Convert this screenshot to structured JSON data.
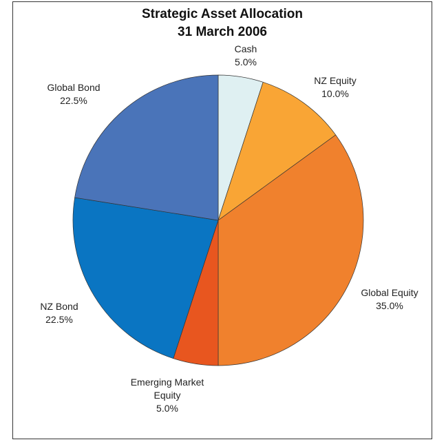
{
  "chart_data": {
    "type": "pie",
    "title": "Strategic Asset Allocation",
    "subtitle": "31 March 2006",
    "categories": [
      "Cash",
      "NZ Equity",
      "Global Equity",
      "Emerging Market Equity",
      "NZ Bond",
      "Global Bond"
    ],
    "values": [
      5,
      10,
      35,
      5,
      22.5,
      22.5
    ],
    "value_labels": [
      "5.0%",
      "10.0%",
      "35.0%",
      "5.0%",
      "22.5%",
      "22.5%"
    ],
    "colors": [
      "#dff0f2",
      "#f9a535",
      "#f0812d",
      "#e8561f",
      "#0a75c2",
      "#4a74b9"
    ]
  }
}
